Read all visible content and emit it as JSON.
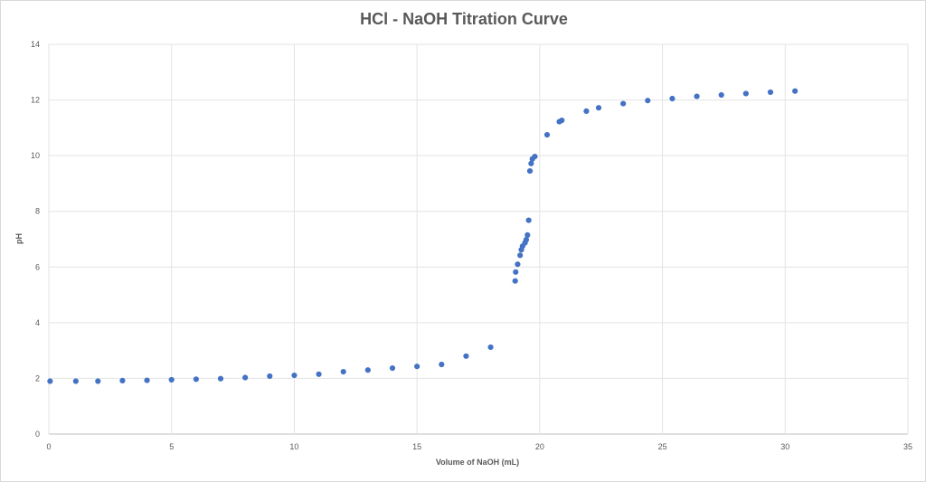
{
  "chart_data": {
    "type": "scatter",
    "title": "HCl - NaOH Titration Curve",
    "xlabel": "Volume of NaOH (mL)",
    "ylabel": "pH",
    "xlim": [
      0,
      35
    ],
    "ylim": [
      0,
      14
    ],
    "x_ticks": [
      "0",
      "5",
      "10",
      "15",
      "20",
      "25",
      "30",
      "35"
    ],
    "y_ticks": [
      "0",
      "2",
      "4",
      "6",
      "8",
      "10",
      "12",
      "14"
    ],
    "grid": true,
    "legend": "none",
    "marker_color": "#4472c4",
    "series": [
      {
        "x": [
          0.05,
          1.1,
          2.0,
          3.0,
          4.0,
          5.0,
          6.0,
          7.0,
          8.0,
          9.0,
          10.0,
          11.0,
          12.0,
          13.0,
          14.0,
          15.0,
          16.0,
          17.0,
          18.0,
          19.0,
          19.02,
          19.1,
          19.2,
          19.25,
          19.3,
          19.4,
          19.45,
          19.5,
          19.55,
          19.6,
          19.65,
          19.7,
          19.8,
          20.3,
          20.8,
          20.9,
          21.9,
          22.4,
          23.4,
          24.4,
          25.4,
          26.4,
          27.4,
          28.4,
          29.4,
          30.4
        ],
        "y": [
          1.9,
          1.9,
          1.9,
          1.92,
          1.93,
          1.95,
          1.97,
          1.99,
          2.03,
          2.08,
          2.11,
          2.15,
          2.24,
          2.3,
          2.37,
          2.43,
          2.5,
          2.8,
          3.12,
          5.5,
          5.82,
          6.1,
          6.42,
          6.62,
          6.75,
          6.87,
          6.98,
          7.15,
          7.68,
          9.45,
          9.72,
          9.88,
          9.97,
          10.75,
          11.22,
          11.27,
          11.6,
          11.72,
          11.87,
          11.98,
          12.05,
          12.13,
          12.18,
          12.23,
          12.28,
          12.32
        ]
      }
    ]
  }
}
